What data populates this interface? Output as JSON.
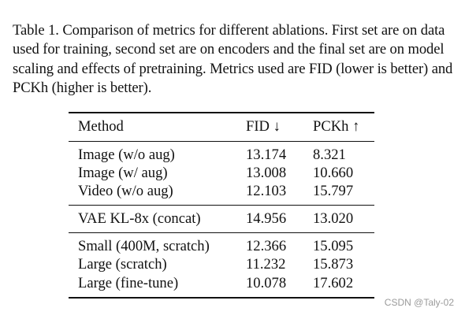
{
  "caption": "Table 1. Comparison of metrics for different ablations. First set are on data used for training, second set are on encoders and the final set are on model scaling and effects of pretraining. Metrics used are FID (lower is better) and PCKh (higher is better).",
  "table": {
    "headers": [
      "Method",
      "FID ↓",
      "PCKh ↑"
    ],
    "groups": [
      [
        [
          "Image (w/o aug)",
          "13.174",
          "8.321"
        ],
        [
          "Image (w/ aug)",
          "13.008",
          "10.660"
        ],
        [
          "Video (w/o aug)",
          "12.103",
          "15.797"
        ]
      ],
      [
        [
          "VAE KL-8x (concat)",
          "14.956",
          "13.020"
        ]
      ],
      [
        [
          "Small (400M, scratch)",
          "12.366",
          "15.095"
        ],
        [
          "Large (scratch)",
          "11.232",
          "15.873"
        ],
        [
          "Large (fine-tune)",
          "10.078",
          "17.602"
        ]
      ]
    ]
  },
  "watermark": "CSDN @Taly-02"
}
